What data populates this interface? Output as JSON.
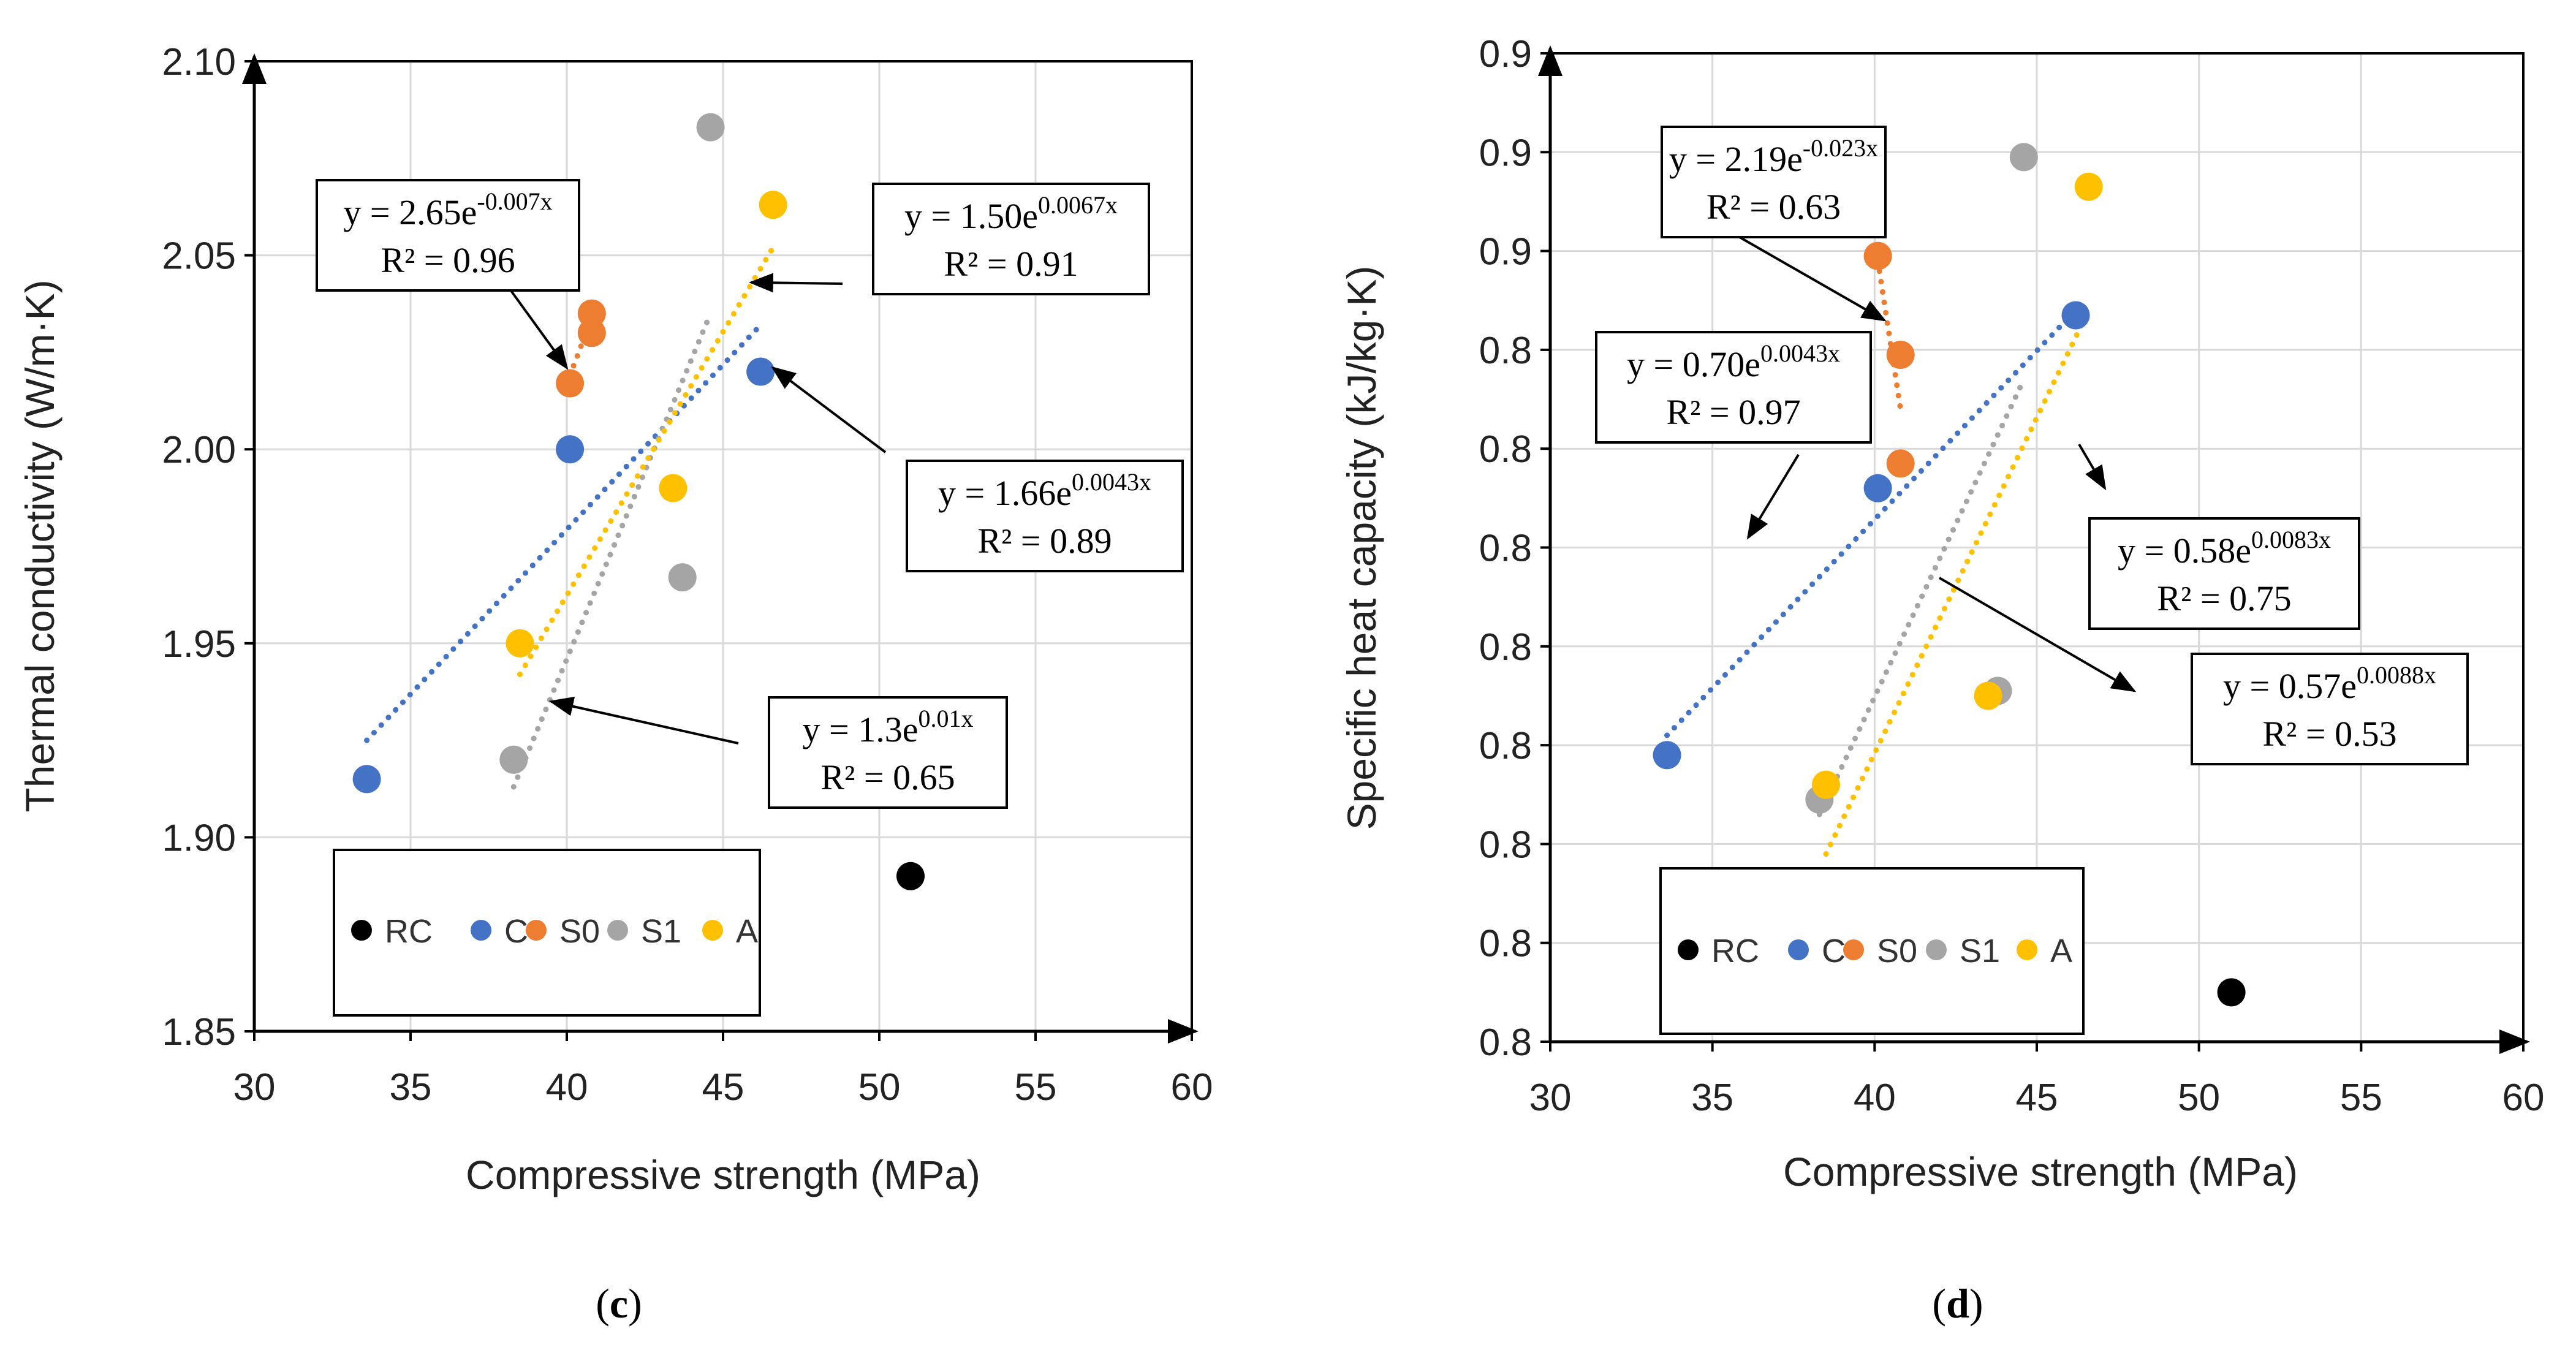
{
  "chart_data": [
    {
      "type": "scatter",
      "panel_label": {
        "open": "(",
        "letter": "c",
        "close": ")"
      },
      "title": "",
      "xlabel": "Compressive strength (MPa)",
      "ylabel": "Thermal conductivity (W/m·K)",
      "xlim": [
        30,
        60
      ],
      "ylim": [
        1.85,
        2.1
      ],
      "xticks": [
        30,
        35,
        40,
        45,
        50,
        55,
        60
      ],
      "xtick_labels": [
        "30",
        "35",
        "40",
        "45",
        "50",
        "55",
        "60"
      ],
      "yticks": [
        1.85,
        1.9,
        1.95,
        2.0,
        2.05,
        2.1
      ],
      "ytick_labels": [
        "1.85",
        "1.90",
        "1.95",
        "2.00",
        "2.05",
        "2.10"
      ],
      "grid": true,
      "legend": "bottom-left",
      "series": [
        {
          "name": "RC",
          "color": "#000000",
          "points": [
            [
              51.0,
              1.89
            ]
          ]
        },
        {
          "name": "C",
          "color": "#4472C4",
          "points": [
            [
              33.6,
              1.915
            ],
            [
              40.1,
              2.0
            ],
            [
              46.2,
              2.02
            ]
          ],
          "trend": {
            "x": [
              33.6,
              46.2
            ],
            "y": [
              1.925,
              2.032
            ]
          }
        },
        {
          "name": "S0",
          "color": "#ED7D31",
          "points": [
            [
              40.1,
              2.017
            ],
            [
              40.8,
              2.03
            ],
            [
              40.8,
              2.035
            ]
          ],
          "trend": {
            "x": [
              40.1,
              40.8
            ],
            "y": [
              2.019,
              2.034
            ]
          }
        },
        {
          "name": "S1",
          "color": "#A5A5A5",
          "points": [
            [
              38.3,
              1.92
            ],
            [
              43.7,
              1.967
            ],
            [
              44.6,
              2.083
            ]
          ],
          "trend": {
            "x": [
              38.3,
              44.6
            ],
            "y": [
              1.913,
              2.035
            ]
          }
        },
        {
          "name": "A",
          "color": "#FFC000",
          "points": [
            [
              38.5,
              1.95
            ],
            [
              43.4,
              1.99
            ],
            [
              46.6,
              2.063
            ]
          ],
          "trend": {
            "x": [
              38.5,
              46.6
            ],
            "y": [
              1.942,
              2.052
            ]
          }
        }
      ],
      "annotations": [
        {
          "eq": "y = 2.65e",
          "exp": "-0.007x",
          "r2": "R² = 0.96",
          "arrow_to": [
            40.0,
            2.021
          ]
        },
        {
          "eq": "y = 1.50e",
          "exp": "0.0067x",
          "r2": "R² = 0.91",
          "arrow_to": [
            45.9,
            2.043
          ]
        },
        {
          "eq": "y = 1.66e",
          "exp": "0.0043x",
          "r2": "R² = 0.89",
          "arrow_to": [
            46.6,
            2.021
          ]
        },
        {
          "eq": "y = 1.3e",
          "exp": "0.01x",
          "r2": "R² = 0.65",
          "arrow_to": [
            39.5,
            1.935
          ]
        }
      ]
    },
    {
      "type": "scatter",
      "panel_label": {
        "open": "(",
        "letter": "d",
        "close": ")"
      },
      "title": "",
      "xlabel": "Compressive strength (MPa)",
      "ylabel": "Specific heat capacity (kJ/kg·K)",
      "xlim": [
        30,
        60
      ],
      "ylim": [
        0,
        10
      ],
      "xticks": [
        30,
        35,
        40,
        45,
        50,
        55,
        60
      ],
      "xtick_labels": [
        "30",
        "35",
        "40",
        "45",
        "50",
        "55",
        "60"
      ],
      "yticks": [
        0,
        1,
        2,
        3,
        4,
        5,
        6,
        7,
        8,
        9,
        10
      ],
      "ytick_labels": [
        "0.8",
        "0.8",
        "0.8",
        "0.8",
        "0.8",
        "0.8",
        "0.8",
        "0.8",
        "0.9",
        "0.9",
        "0.9"
      ],
      "y_note": "y values are positions on the relative 0–10 tick scale (tick labels as printed)",
      "grid": true,
      "legend": "bottom-left",
      "series": [
        {
          "name": "RC",
          "color": "#000000",
          "points": [
            [
              51.0,
              0.5
            ]
          ]
        },
        {
          "name": "C",
          "color": "#4472C4",
          "points": [
            [
              33.6,
              2.9
            ],
            [
              40.1,
              5.6
            ],
            [
              46.2,
              7.35
            ]
          ],
          "trend": {
            "x": [
              33.6,
              46.2
            ],
            "y": [
              3.1,
              7.4
            ]
          }
        },
        {
          "name": "S0",
          "color": "#ED7D31",
          "points": [
            [
              40.1,
              7.95
            ],
            [
              40.8,
              6.95
            ],
            [
              40.8,
              5.85
            ]
          ],
          "trend": {
            "x": [
              40.1,
              40.8
            ],
            "y": [
              7.9,
              6.4
            ]
          }
        },
        {
          "name": "S1",
          "color": "#A5A5A5",
          "points": [
            [
              38.3,
              2.45
            ],
            [
              43.8,
              3.55
            ],
            [
              44.6,
              8.95
            ]
          ],
          "trend": {
            "x": [
              38.3,
              44.6
            ],
            "y": [
              2.3,
              6.7
            ]
          }
        },
        {
          "name": "A",
          "color": "#FFC000",
          "points": [
            [
              38.5,
              2.6
            ],
            [
              43.5,
              3.5
            ],
            [
              46.6,
              8.65
            ]
          ],
          "trend": {
            "x": [
              38.5,
              46.6
            ],
            "y": [
              1.9,
              7.4
            ]
          }
        }
      ],
      "annotations": [
        {
          "eq": "y = 2.19e",
          "exp": "-0.023x",
          "r2": "R² = 0.63",
          "arrow_to": [
            40.3,
            7.3
          ]
        },
        {
          "eq": "y = 0.70e",
          "exp": "0.0043x",
          "r2": "R² = 0.97",
          "arrow_to": [
            36.1,
            5.1
          ]
        },
        {
          "eq": "y = 0.58e",
          "exp": "0.0083x",
          "r2": "R² = 0.75",
          "arrow_to": [
            47.1,
            5.6
          ]
        },
        {
          "eq": "y = 0.57e",
          "exp": "0.0088x",
          "r2": "R² = 0.53",
          "arrow_to": [
            48.0,
            3.55
          ]
        }
      ]
    }
  ]
}
